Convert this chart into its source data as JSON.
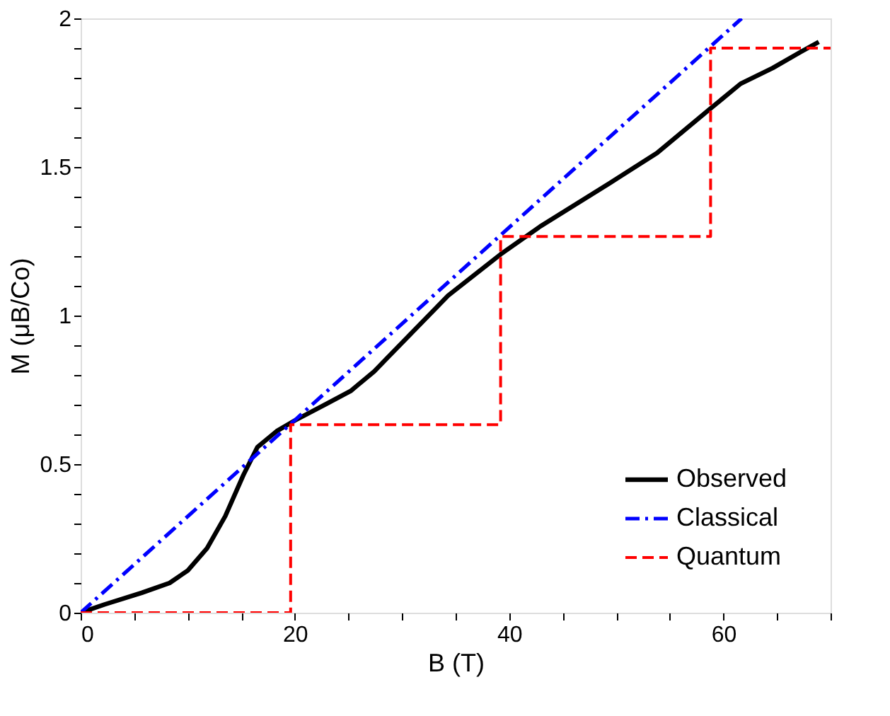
{
  "chart_data": {
    "type": "line",
    "xlabel": "B (T)",
    "ylabel": "M (μB/Co)",
    "xlim": [
      0,
      70
    ],
    "ylim": [
      0,
      2
    ],
    "xticks": [
      0,
      {
        "value": 5,
        "label": null
      },
      {
        "value": 10,
        "label": null
      },
      {
        "value": 15,
        "label": null
      },
      20,
      {
        "value": 25,
        "label": null
      },
      {
        "value": 30,
        "label": null
      },
      {
        "value": 35,
        "label": null
      },
      40,
      {
        "value": 45,
        "label": null
      },
      {
        "value": 50,
        "label": null
      },
      {
        "value": 55,
        "label": null
      },
      60,
      {
        "value": 65,
        "label": null
      },
      {
        "value": 70,
        "label": null
      }
    ],
    "yticks": [
      0,
      {
        "value": 0.1,
        "label": null
      },
      {
        "value": 0.2,
        "label": null
      },
      {
        "value": 0.3,
        "label": null
      },
      {
        "value": 0.4,
        "label": null
      },
      0.5,
      {
        "value": 0.6,
        "label": null
      },
      {
        "value": 0.7,
        "label": null
      },
      {
        "value": 0.8,
        "label": null
      },
      {
        "value": 0.9,
        "label": null
      },
      1,
      {
        "value": 1.1,
        "label": null
      },
      {
        "value": 1.2,
        "label": null
      },
      {
        "value": 1.3,
        "label": null
      },
      {
        "value": 1.4,
        "label": null
      },
      1.5,
      {
        "value": 1.6,
        "label": null
      },
      {
        "value": 1.7,
        "label": null
      },
      {
        "value": 1.8,
        "label": null
      },
      {
        "value": 1.9,
        "label": null
      },
      2
    ],
    "grid": false,
    "legend": "bottom right",
    "marker": "none",
    "series": [
      {
        "name": "Observed",
        "color": "#000000",
        "line_style": "solid",
        "x": [
          0,
          2.25,
          5.7,
          8.3,
          10,
          11.8,
          13.5,
          15.2,
          16.5,
          18.3,
          20,
          23,
          25.2,
          27.4,
          29.5,
          34.3,
          39.2,
          42.9,
          49.4,
          53.8,
          58.7,
          61.6,
          64.6,
          67.2,
          68.9
        ],
        "values": [
          0,
          0.028,
          0.067,
          0.1,
          0.142,
          0.217,
          0.325,
          0.464,
          0.557,
          0.611,
          0.647,
          0.704,
          0.746,
          0.812,
          0.89,
          1.067,
          1.206,
          1.3,
          1.446,
          1.547,
          1.694,
          1.78,
          1.833,
          1.887,
          1.921
        ]
      },
      {
        "name": "Classical",
        "color": "#0000ff",
        "line_style": "dashdot",
        "x": [
          0,
          61.7
        ],
        "values": [
          0,
          2
        ]
      },
      {
        "name": "Quantum",
        "type": "step",
        "color": "#ff0000",
        "line_style": "dashed",
        "x": [
          0,
          19.6,
          39.2,
          58.8,
          70
        ],
        "values": [
          0,
          0.633,
          1.266,
          1.9,
          1.9
        ]
      }
    ]
  }
}
